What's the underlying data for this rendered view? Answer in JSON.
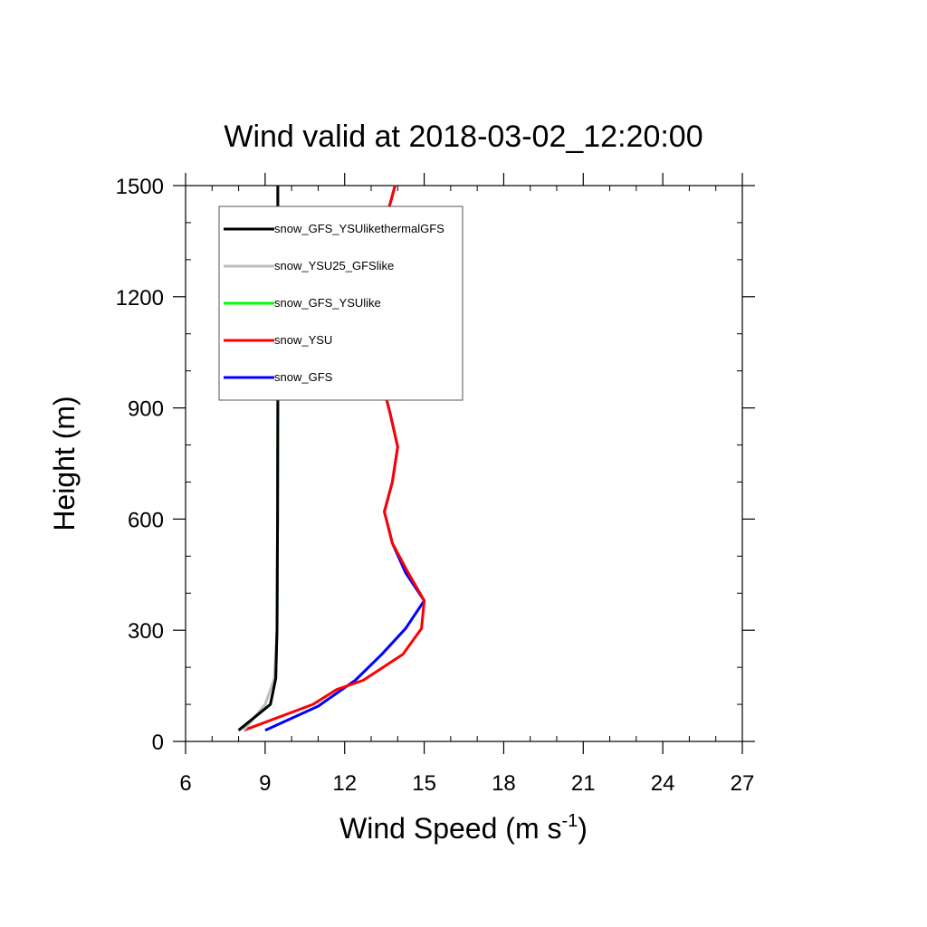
{
  "chart_data": {
    "type": "line",
    "title": "Wind valid at 2018-03-02_12:20:00",
    "xlabel": "Wind Speed (m s",
    "xlabel_sup": "-1",
    "xlabel_end": ")",
    "ylabel": "Height (m)",
    "xlim": [
      6,
      27
    ],
    "ylim": [
      0,
      1500
    ],
    "x_ticks": [
      6,
      9,
      12,
      15,
      18,
      21,
      24,
      27
    ],
    "y_ticks": [
      0,
      300,
      600,
      900,
      1200,
      1500
    ],
    "x_tick_labels": [
      "6",
      "9",
      "12",
      "15",
      "18",
      "21",
      "24",
      "27"
    ],
    "y_tick_labels": [
      "0",
      "300",
      "600",
      "900",
      "1200",
      "1500"
    ],
    "legend_position": "top-left",
    "series": [
      {
        "name": "snow_GFS",
        "color": "#0000ff",
        "points": [
          [
            9.0,
            30
          ],
          [
            11.0,
            95
          ],
          [
            12.4,
            165
          ],
          [
            13.4,
            235
          ],
          [
            14.3,
            305
          ],
          [
            15.0,
            380
          ],
          [
            14.3,
            455
          ],
          [
            13.8,
            535
          ],
          [
            13.5,
            620
          ],
          [
            13.8,
            700
          ],
          [
            14.0,
            795
          ],
          [
            13.7,
            890
          ],
          [
            13.3,
            1000
          ],
          [
            12.9,
            1170
          ],
          [
            13.1,
            1290
          ],
          [
            13.9,
            1500
          ]
        ]
      },
      {
        "name": "snow_YSU",
        "color": "#ff0000",
        "points": [
          [
            8.2,
            30
          ],
          [
            10.8,
            100
          ],
          [
            11.7,
            140
          ],
          [
            12.7,
            165
          ],
          [
            14.2,
            235
          ],
          [
            14.9,
            305
          ],
          [
            15.0,
            380
          ],
          [
            14.4,
            455
          ],
          [
            13.8,
            535
          ],
          [
            13.5,
            620
          ],
          [
            13.8,
            700
          ],
          [
            14.0,
            795
          ],
          [
            13.7,
            890
          ],
          [
            13.3,
            1000
          ],
          [
            12.9,
            1170
          ],
          [
            13.1,
            1290
          ],
          [
            13.9,
            1500
          ]
        ]
      },
      {
        "name": "snow_GFS_YSUlike",
        "color": "#00ff00",
        "points": [
          [
            8.0,
            30
          ],
          [
            9.2,
            100
          ],
          [
            9.4,
            170
          ],
          [
            9.45,
            300
          ],
          [
            9.47,
            600
          ],
          [
            9.48,
            900
          ],
          [
            9.48,
            1200
          ],
          [
            9.48,
            1500
          ]
        ]
      },
      {
        "name": "snow_YSU25_GFSlike",
        "color": "#bebebe",
        "points": [
          [
            8.2,
            30
          ],
          [
            9.0,
            100
          ],
          [
            9.35,
            170
          ],
          [
            9.45,
            300
          ],
          [
            9.47,
            600
          ],
          [
            9.48,
            900
          ],
          [
            9.48,
            1200
          ],
          [
            9.48,
            1500
          ]
        ]
      },
      {
        "name": "snow_GFS_YSUlikethermalGFS",
        "color": "#000000",
        "points": [
          [
            8.0,
            30
          ],
          [
            9.2,
            100
          ],
          [
            9.4,
            170
          ],
          [
            9.45,
            300
          ],
          [
            9.47,
            600
          ],
          [
            9.48,
            900
          ],
          [
            9.48,
            1200
          ],
          [
            9.48,
            1500
          ]
        ]
      }
    ],
    "legend_order": [
      "snow_GFS_YSUlikethermalGFS",
      "snow_YSU25_GFSlike",
      "snow_GFS_YSUlike",
      "snow_YSU",
      "snow_GFS"
    ]
  }
}
